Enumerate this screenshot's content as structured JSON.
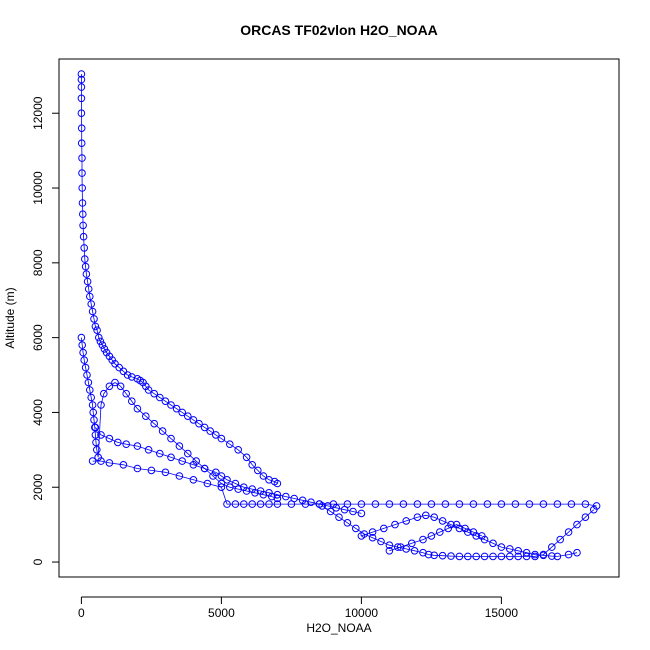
{
  "chart_data": {
    "type": "scatter",
    "title": "ORCAS TF02vlon H2O_NOAA",
    "xlabel": "H2O_NOAA",
    "ylabel": "Altitude (m)",
    "xlim": [
      -800,
      19200
    ],
    "ylim": [
      -400,
      13450
    ],
    "xticks": [
      0,
      5000,
      10000,
      15000
    ],
    "yticks": [
      0,
      2000,
      4000,
      6000,
      8000,
      10000,
      12000
    ],
    "grid": false,
    "legend": "none",
    "marker": "open-circle",
    "connect_points": true,
    "color": "#0000ff",
    "series": [
      {
        "x": [
          0,
          0,
          0,
          0,
          0,
          10,
          10,
          20,
          20,
          30,
          40,
          50,
          60,
          80,
          100,
          120,
          150,
          180,
          220,
          260,
          300,
          350,
          400,
          450,
          500,
          560,
          620,
          680,
          750,
          820,
          900,
          1000,
          1100,
          1200,
          1350,
          1500,
          1650,
          1800,
          2000,
          2100,
          2200,
          2300,
          2400,
          2600,
          2800,
          3000,
          3200,
          3400,
          3600,
          3800,
          4000,
          4200,
          4400,
          4600,
          4800,
          5000,
          5300,
          5600,
          5900,
          6100,
          6300,
          6500,
          6700,
          6900,
          7000
        ],
        "y": [
          13050,
          12900,
          12700,
          12400,
          12000,
          11600,
          11200,
          10800,
          10400,
          10000,
          9600,
          9300,
          9000,
          8700,
          8400,
          8100,
          7900,
          7700,
          7500,
          7300,
          7100,
          6900,
          6700,
          6500,
          6300,
          6200,
          6000,
          5900,
          5800,
          5700,
          5600,
          5500,
          5400,
          5300,
          5200,
          5100,
          5000,
          4950,
          4900,
          4850,
          4800,
          4700,
          4600,
          4500,
          4400,
          4300,
          4200,
          4100,
          4000,
          3900,
          3800,
          3700,
          3600,
          3500,
          3400,
          3300,
          3150,
          3000,
          2800,
          2600,
          2450,
          2300,
          2200,
          2150,
          2100
        ]
      },
      {
        "x": [
          0,
          30,
          60,
          100,
          150,
          200,
          250,
          300,
          350,
          400,
          420,
          450,
          480,
          500,
          520,
          550,
          600,
          700,
          800,
          1000,
          1200,
          1400,
          1600,
          1800,
          2000,
          2300,
          2600,
          2900,
          3200,
          3500,
          3800,
          4100,
          4400,
          4700,
          5000,
          5300,
          5600,
          5900,
          6200,
          6500,
          6800,
          7000
        ],
        "y": [
          6000,
          5800,
          5600,
          5400,
          5200,
          5000,
          4800,
          4600,
          4400,
          4200,
          4000,
          3800,
          3600,
          3400,
          3200,
          3000,
          2800,
          4200,
          4500,
          4700,
          4800,
          4700,
          4500,
          4300,
          4100,
          3900,
          3700,
          3500,
          3300,
          3100,
          2900,
          2700,
          2500,
          2300,
          2100,
          2000,
          1950,
          1900,
          1850,
          1800,
          1750,
          1700
        ]
      },
      {
        "x": [
          500,
          700,
          1000,
          1300,
          1600,
          2000,
          2400,
          2800,
          3200,
          3600,
          4000,
          4400,
          4800,
          5000,
          5200,
          5500,
          5800,
          6100,
          6400,
          6700,
          7000,
          7300,
          7600,
          7900,
          8200,
          8500,
          8800,
          9100,
          9400,
          9700,
          10000
        ],
        "y": [
          3600,
          3400,
          3300,
          3200,
          3150,
          3100,
          3000,
          2900,
          2800,
          2700,
          2600,
          2500,
          2400,
          2300,
          2200,
          2100,
          2000,
          1950,
          1900,
          1850,
          1800,
          1750,
          1700,
          1650,
          1600,
          1550,
          1500,
          1450,
          1400,
          1350,
          1300
        ]
      },
      {
        "x": [
          400,
          700,
          1000,
          1500,
          2000,
          2500,
          3000,
          3500,
          4000,
          4500,
          5000,
          5200,
          5500,
          5800,
          6100,
          6400,
          6700,
          7000,
          7500,
          8000,
          8500,
          9000,
          9500,
          10000,
          10500,
          11000,
          11500,
          12000,
          12500,
          13000,
          13500,
          14000,
          14500,
          15000,
          15500,
          16000,
          16500,
          17000,
          17500,
          18000,
          18400
        ],
        "y": [
          2700,
          2700,
          2650,
          2600,
          2500,
          2450,
          2400,
          2300,
          2200,
          2100,
          2000,
          1550,
          1550,
          1550,
          1550,
          1550,
          1550,
          1550,
          1550,
          1550,
          1550,
          1550,
          1550,
          1550,
          1550,
          1550,
          1550,
          1550,
          1550,
          1550,
          1550,
          1550,
          1550,
          1550,
          1550,
          1550,
          1550,
          1550,
          1550,
          1550,
          1500
        ]
      },
      {
        "x": [
          8600,
          8900,
          9200,
          9500,
          9800,
          10100,
          10400,
          10700,
          11000,
          11300,
          11600,
          11900,
          12200,
          12400,
          12600,
          12900,
          13200,
          13500,
          13800,
          14100,
          14400,
          14700,
          15000,
          15300,
          15600,
          15900,
          16200,
          16500,
          16800,
          17100,
          17400,
          17700,
          18000,
          18300
        ],
        "y": [
          1500,
          1350,
          1200,
          1050,
          900,
          750,
          650,
          550,
          450,
          400,
          350,
          300,
          250,
          200,
          180,
          170,
          160,
          150,
          150,
          150,
          150,
          150,
          150,
          150,
          150,
          150,
          150,
          200,
          400,
          600,
          800,
          1000,
          1200,
          1400
        ]
      },
      {
        "x": [
          10000,
          10400,
          10800,
          11200,
          11600,
          12000,
          12300,
          12600,
          12900,
          13200,
          13500,
          13800,
          14100,
          14400,
          14700,
          15000,
          15300,
          15600,
          15900,
          16200,
          16500,
          16800,
          17000,
          17400,
          17700
        ],
        "y": [
          700,
          800,
          900,
          1000,
          1100,
          1200,
          1250,
          1200,
          1100,
          1000,
          900,
          800,
          700,
          600,
          500,
          400,
          350,
          300,
          250,
          200,
          180,
          160,
          150,
          200,
          250
        ]
      },
      {
        "x": [
          11000,
          11400,
          11800,
          12200,
          12500,
          12800,
          13100,
          13400,
          13700,
          14000,
          14300
        ],
        "y": [
          300,
          400,
          500,
          600,
          700,
          800,
          900,
          1000,
          900,
          800,
          700
        ]
      }
    ]
  }
}
